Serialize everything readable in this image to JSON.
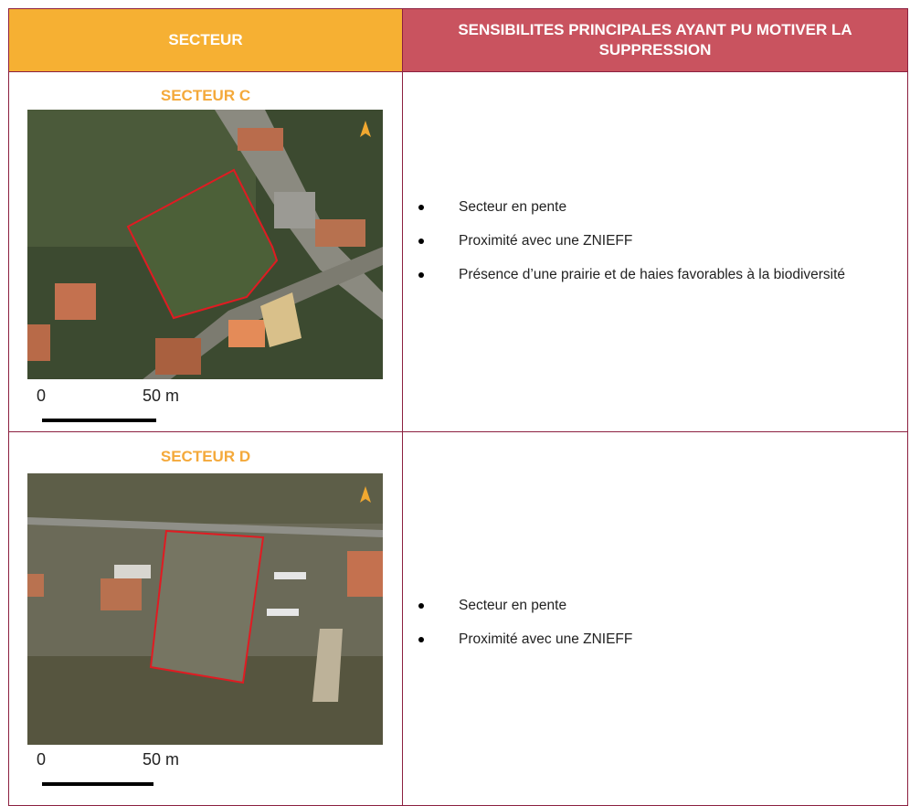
{
  "header": {
    "columns": [
      "SECTEUR",
      "SENSIBILITES PRINCIPALES AYANT PU MOTIVER LA SUPPRESSION"
    ]
  },
  "rows": [
    {
      "sector": "SECTEUR C",
      "scale_start": "0",
      "scale_end": "50 m",
      "bullets": [
        "Secteur en pente",
        "Proximité avec une ZNIEFF",
        "Présence d’une prairie et de haies favorables à la biodiversité"
      ]
    },
    {
      "sector": "SECTEUR D",
      "scale_start": "0",
      "scale_end": "50 m",
      "bullets": [
        "Secteur en pente",
        "Proximité avec une ZNIEFF"
      ]
    }
  ]
}
